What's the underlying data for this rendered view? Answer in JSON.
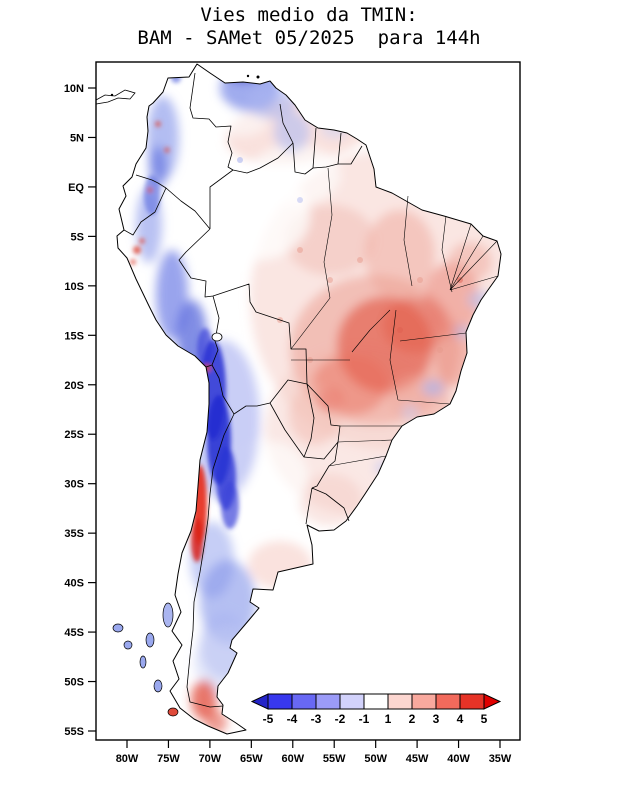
{
  "title": {
    "line1": "Vies medio da TMIN:",
    "line2": "BAM - SAMet 05/2025  para 144h"
  },
  "chart_data": {
    "type": "heatmap",
    "title": "Vies medio da TMIN: BAM - SAMet 05/2025 para 144h",
    "area": "South America",
    "lat_axis": {
      "min": -55,
      "max": 10,
      "tick_step": 5
    },
    "lon_axis": {
      "min": -80,
      "max": -35,
      "tick_step": 5
    },
    "lat_ticks": [
      {
        "label": "10N",
        "value": 10
      },
      {
        "label": "5N",
        "value": 5
      },
      {
        "label": "EQ",
        "value": 0
      },
      {
        "label": "5S",
        "value": -5
      },
      {
        "label": "10S",
        "value": -10
      },
      {
        "label": "15S",
        "value": -15
      },
      {
        "label": "20S",
        "value": -20
      },
      {
        "label": "25S",
        "value": -25
      },
      {
        "label": "30S",
        "value": -30
      },
      {
        "label": "35S",
        "value": -35
      },
      {
        "label": "40S",
        "value": -40
      },
      {
        "label": "45S",
        "value": -45
      },
      {
        "label": "50S",
        "value": -50
      },
      {
        "label": "55S",
        "value": -55
      }
    ],
    "lon_ticks": [
      {
        "label": "80W",
        "value": -80
      },
      {
        "label": "75W",
        "value": -75
      },
      {
        "label": "70W",
        "value": -70
      },
      {
        "label": "65W",
        "value": -65
      },
      {
        "label": "60W",
        "value": -60
      },
      {
        "label": "55W",
        "value": -55
      },
      {
        "label": "50W",
        "value": -50
      },
      {
        "label": "45W",
        "value": -45
      },
      {
        "label": "40W",
        "value": -40
      },
      {
        "label": "35W",
        "value": -35
      }
    ],
    "colorbar": {
      "levels": [
        "-5",
        "-4",
        "-3",
        "-2",
        "-1",
        "1",
        "2",
        "3",
        "4",
        "5"
      ],
      "segment_colors": [
        "#3838ee",
        "#6868f4",
        "#9b9bf8",
        "#d2d2fb",
        "#ffffff",
        "#fcd6d0",
        "#f9a99e",
        "#f26a5c",
        "#e63327"
      ],
      "arrow_left_color": "#2424c8",
      "arrow_right_color": "#e00000",
      "negative_color_meaning": "blue shades (negative bias)",
      "positive_color_meaning": "red shades (positive bias)"
    }
  }
}
